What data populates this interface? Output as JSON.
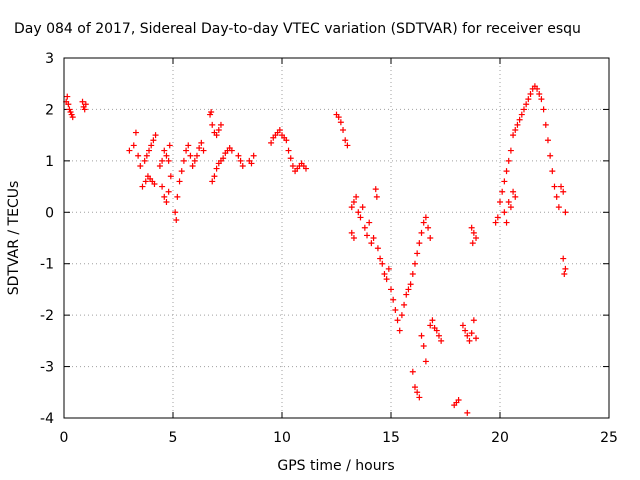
{
  "chart_data": {
    "type": "scatter",
    "title": "Day 084 of 2017, Sidereal Day-to-day VTEC variation (SDTVAR) for receiver esqu",
    "xlabel": "GPS time / hours",
    "ylabel": "SDTVAR / TECUs",
    "xlim": [
      0,
      25
    ],
    "ylim": [
      -4,
      3
    ],
    "xticks": [
      0,
      5,
      10,
      15,
      20,
      25
    ],
    "yticks": [
      -4,
      -3,
      -2,
      -1,
      0,
      1,
      2,
      3
    ],
    "grid": true,
    "marker": "+",
    "color": "#ff0000",
    "series": [
      {
        "name": "SDTVAR",
        "points": [
          [
            0.1,
            2.15
          ],
          [
            0.15,
            2.25
          ],
          [
            0.2,
            2.1
          ],
          [
            0.25,
            2.0
          ],
          [
            0.3,
            1.95
          ],
          [
            0.35,
            1.9
          ],
          [
            0.4,
            1.85
          ],
          [
            0.85,
            2.15
          ],
          [
            0.9,
            2.05
          ],
          [
            0.95,
            2.0
          ],
          [
            1.0,
            2.1
          ],
          [
            3.0,
            1.2
          ],
          [
            3.2,
            1.3
          ],
          [
            3.3,
            1.55
          ],
          [
            3.4,
            1.1
          ],
          [
            3.5,
            0.9
          ],
          [
            3.6,
            0.5
          ],
          [
            3.7,
            1.0
          ],
          [
            3.8,
            1.1
          ],
          [
            3.9,
            1.2
          ],
          [
            4.0,
            1.3
          ],
          [
            4.1,
            1.4
          ],
          [
            4.2,
            1.5
          ],
          [
            3.75,
            0.6
          ],
          [
            3.85,
            0.7
          ],
          [
            3.95,
            0.65
          ],
          [
            4.05,
            0.6
          ],
          [
            4.15,
            0.55
          ],
          [
            4.4,
            0.9
          ],
          [
            4.5,
            1.0
          ],
          [
            4.6,
            1.2
          ],
          [
            4.7,
            1.1
          ],
          [
            4.8,
            1.0
          ],
          [
            4.9,
            0.7
          ],
          [
            4.5,
            0.5
          ],
          [
            4.6,
            0.3
          ],
          [
            4.7,
            0.2
          ],
          [
            4.8,
            0.4
          ],
          [
            4.85,
            1.3
          ],
          [
            5.1,
            0.0
          ],
          [
            5.15,
            -0.15
          ],
          [
            5.2,
            0.3
          ],
          [
            5.3,
            0.6
          ],
          [
            5.4,
            0.8
          ],
          [
            5.5,
            1.0
          ],
          [
            5.6,
            1.2
          ],
          [
            5.7,
            1.3
          ],
          [
            5.8,
            1.1
          ],
          [
            5.9,
            0.9
          ],
          [
            6.0,
            1.0
          ],
          [
            6.1,
            1.1
          ],
          [
            6.2,
            1.25
          ],
          [
            6.3,
            1.35
          ],
          [
            6.4,
            1.2
          ],
          [
            6.7,
            1.9
          ],
          [
            6.75,
            1.95
          ],
          [
            6.8,
            1.7
          ],
          [
            6.9,
            1.55
          ],
          [
            7.0,
            1.5
          ],
          [
            7.1,
            1.6
          ],
          [
            7.2,
            1.7
          ],
          [
            6.8,
            0.6
          ],
          [
            6.9,
            0.7
          ],
          [
            7.0,
            0.85
          ],
          [
            7.1,
            0.95
          ],
          [
            7.2,
            1.0
          ],
          [
            7.3,
            1.05
          ],
          [
            7.4,
            1.15
          ],
          [
            7.5,
            1.2
          ],
          [
            7.6,
            1.25
          ],
          [
            7.7,
            1.2
          ],
          [
            8.0,
            1.1
          ],
          [
            8.1,
            1.0
          ],
          [
            8.2,
            0.9
          ],
          [
            8.5,
            1.0
          ],
          [
            8.6,
            0.95
          ],
          [
            8.7,
            1.1
          ],
          [
            9.5,
            1.35
          ],
          [
            9.6,
            1.45
          ],
          [
            9.7,
            1.5
          ],
          [
            9.8,
            1.55
          ],
          [
            9.9,
            1.6
          ],
          [
            10.0,
            1.5
          ],
          [
            10.1,
            1.45
          ],
          [
            10.2,
            1.4
          ],
          [
            10.3,
            1.2
          ],
          [
            10.4,
            1.05
          ],
          [
            10.5,
            0.9
          ],
          [
            10.6,
            0.8
          ],
          [
            10.7,
            0.85
          ],
          [
            10.8,
            0.9
          ],
          [
            10.9,
            0.95
          ],
          [
            11.0,
            0.9
          ],
          [
            11.1,
            0.85
          ],
          [
            12.5,
            1.9
          ],
          [
            12.6,
            1.85
          ],
          [
            12.7,
            1.75
          ],
          [
            12.8,
            1.6
          ],
          [
            12.9,
            1.4
          ],
          [
            13.0,
            1.3
          ],
          [
            13.2,
            0.1
          ],
          [
            13.3,
            0.2
          ],
          [
            13.4,
            0.3
          ],
          [
            13.5,
            0.0
          ],
          [
            13.6,
            -0.1
          ],
          [
            13.7,
            0.1
          ],
          [
            13.2,
            -0.4
          ],
          [
            13.3,
            -0.5
          ],
          [
            13.8,
            -0.3
          ],
          [
            13.9,
            -0.45
          ],
          [
            14.0,
            -0.2
          ],
          [
            14.1,
            -0.6
          ],
          [
            14.2,
            -0.5
          ],
          [
            14.3,
            0.45
          ],
          [
            14.35,
            0.3
          ],
          [
            14.4,
            -0.7
          ],
          [
            14.5,
            -0.9
          ],
          [
            14.6,
            -1.0
          ],
          [
            14.7,
            -1.2
          ],
          [
            14.8,
            -1.3
          ],
          [
            14.9,
            -1.1
          ],
          [
            15.0,
            -1.5
          ],
          [
            15.1,
            -1.7
          ],
          [
            15.2,
            -1.9
          ],
          [
            15.3,
            -2.1
          ],
          [
            15.4,
            -2.3
          ],
          [
            15.5,
            -2.0
          ],
          [
            15.6,
            -1.8
          ],
          [
            15.7,
            -1.6
          ],
          [
            15.8,
            -1.5
          ],
          [
            15.9,
            -1.4
          ],
          [
            16.0,
            -1.2
          ],
          [
            16.1,
            -1.0
          ],
          [
            16.2,
            -0.8
          ],
          [
            16.3,
            -0.6
          ],
          [
            16.4,
            -0.4
          ],
          [
            16.5,
            -0.2
          ],
          [
            16.6,
            -0.1
          ],
          [
            16.7,
            -0.3
          ],
          [
            16.8,
            -0.5
          ],
          [
            16.0,
            -3.1
          ],
          [
            16.1,
            -3.4
          ],
          [
            16.2,
            -3.5
          ],
          [
            16.3,
            -3.6
          ],
          [
            16.4,
            -2.4
          ],
          [
            16.5,
            -2.6
          ],
          [
            16.6,
            -2.9
          ],
          [
            16.8,
            -2.2
          ],
          [
            16.9,
            -2.1
          ],
          [
            17.0,
            -2.25
          ],
          [
            17.1,
            -2.3
          ],
          [
            17.2,
            -2.4
          ],
          [
            17.3,
            -2.5
          ],
          [
            17.9,
            -3.75
          ],
          [
            18.0,
            -3.7
          ],
          [
            18.1,
            -3.65
          ],
          [
            18.5,
            -3.9
          ],
          [
            18.3,
            -2.2
          ],
          [
            18.4,
            -2.3
          ],
          [
            18.5,
            -2.4
          ],
          [
            18.6,
            -2.5
          ],
          [
            18.7,
            -2.35
          ],
          [
            18.8,
            -2.1
          ],
          [
            18.9,
            -2.45
          ],
          [
            18.7,
            -0.3
          ],
          [
            18.8,
            -0.4
          ],
          [
            18.9,
            -0.5
          ],
          [
            18.75,
            -0.6
          ],
          [
            19.8,
            -0.2
          ],
          [
            19.9,
            -0.1
          ],
          [
            20.0,
            0.2
          ],
          [
            20.1,
            0.4
          ],
          [
            20.2,
            0.6
          ],
          [
            20.3,
            0.8
          ],
          [
            20.4,
            1.0
          ],
          [
            20.5,
            1.2
          ],
          [
            20.6,
            1.5
          ],
          [
            20.7,
            1.6
          ],
          [
            20.8,
            1.7
          ],
          [
            20.9,
            1.8
          ],
          [
            21.0,
            1.9
          ],
          [
            21.1,
            2.0
          ],
          [
            21.2,
            2.1
          ],
          [
            21.3,
            2.2
          ],
          [
            21.4,
            2.3
          ],
          [
            21.5,
            2.4
          ],
          [
            21.6,
            2.45
          ],
          [
            21.7,
            2.4
          ],
          [
            21.8,
            2.3
          ],
          [
            21.9,
            2.2
          ],
          [
            22.0,
            2.0
          ],
          [
            22.1,
            1.7
          ],
          [
            22.2,
            1.4
          ],
          [
            22.3,
            1.1
          ],
          [
            22.4,
            0.8
          ],
          [
            22.5,
            0.5
          ],
          [
            22.6,
            0.3
          ],
          [
            22.7,
            0.1
          ],
          [
            22.8,
            0.5
          ],
          [
            22.9,
            0.4
          ],
          [
            23.0,
            0.0
          ],
          [
            22.9,
            -0.9
          ],
          [
            23.0,
            -1.1
          ],
          [
            22.95,
            -1.2
          ],
          [
            20.2,
            0.0
          ],
          [
            20.3,
            -0.2
          ],
          [
            20.4,
            0.2
          ],
          [
            20.5,
            0.1
          ],
          [
            20.6,
            0.4
          ],
          [
            20.7,
            0.3
          ]
        ]
      }
    ]
  }
}
